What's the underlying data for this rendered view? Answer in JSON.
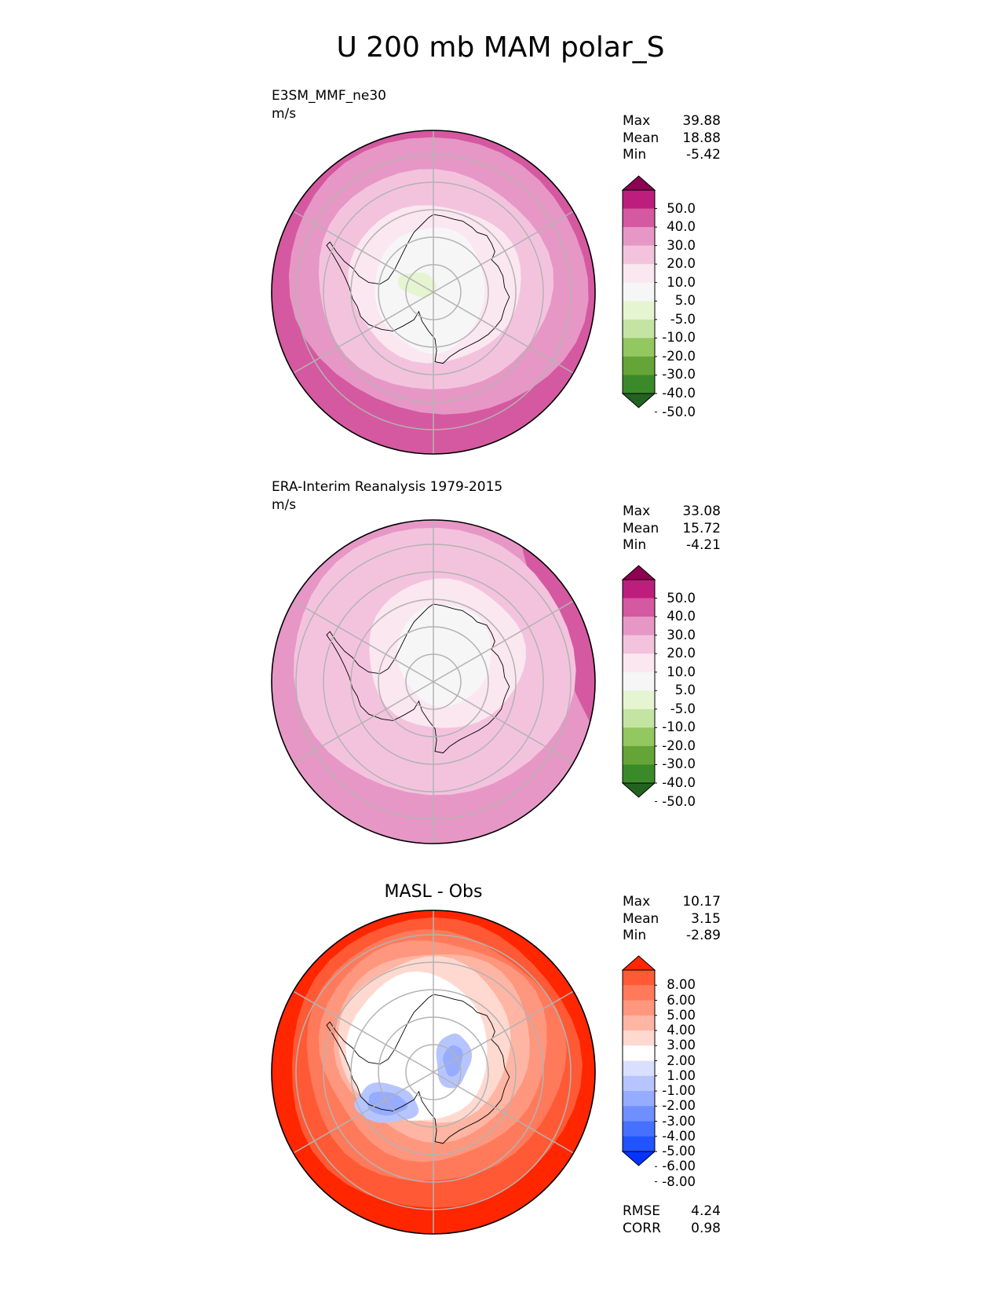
{
  "title": "U 200 mb MAM polar_S",
  "colors": {
    "pinkgreen": [
      "#246222",
      "#3b8a2a",
      "#65a436",
      "#93c760",
      "#c4e4a3",
      "#e6f5d1",
      "#f6f6f6",
      "#fbe7f0",
      "#f3c3de",
      "#e797c5",
      "#d559a0",
      "#bd1e7d",
      "#8e0152"
    ],
    "diff": [
      "#0433ff",
      "#2153ff",
      "#4670ff",
      "#6f8fff",
      "#96acff",
      "#b6c5ff",
      "#d9e0ff",
      "#ffffff",
      "#ffd9d0",
      "#ffb5a3",
      "#ff967e",
      "#ff7a5b",
      "#ff5a35",
      "#ff2600"
    ],
    "grid": "#b3b3b3",
    "coast": "#000000"
  },
  "chart_data": [
    {
      "type": "heatmap",
      "projection": "south-polar-stereographic",
      "name": "test",
      "label": "E3SM_MMF_ne30",
      "units": "m/s",
      "stats": [
        {
          "name": "Max",
          "value": "39.88"
        },
        {
          "name": "Mean",
          "value": "18.88"
        },
        {
          "name": "Min",
          "value": "-5.42"
        }
      ],
      "colorbar": {
        "levels": [
          "50.0",
          "40.0",
          "30.0",
          "20.0",
          "10.0",
          "5.0",
          "-5.0",
          "-10.0",
          "-20.0",
          "-30.0",
          "-40.0",
          "-50.0"
        ],
        "extend": "both"
      }
    },
    {
      "type": "heatmap",
      "projection": "south-polar-stereographic",
      "name": "reference",
      "label": "ERA-Interim Reanalysis 1979-2015",
      "units": "m/s",
      "stats": [
        {
          "name": "Max",
          "value": "33.08"
        },
        {
          "name": "Mean",
          "value": "15.72"
        },
        {
          "name": "Min",
          "value": "-4.21"
        }
      ],
      "colorbar": {
        "levels": [
          "50.0",
          "40.0",
          "30.0",
          "20.0",
          "10.0",
          "5.0",
          "-5.0",
          "-10.0",
          "-20.0",
          "-30.0",
          "-40.0",
          "-50.0"
        ],
        "extend": "both"
      }
    },
    {
      "type": "heatmap",
      "projection": "south-polar-stereographic",
      "name": "difference",
      "title": "MASL - Obs",
      "stats": [
        {
          "name": "Max",
          "value": "10.17"
        },
        {
          "name": "Mean",
          "value": "3.15"
        },
        {
          "name": "Min",
          "value": "-2.89"
        }
      ],
      "metrics": [
        {
          "name": "RMSE",
          "value": "4.24"
        },
        {
          "name": "CORR",
          "value": "0.98"
        }
      ],
      "colorbar": {
        "levels": [
          "8.00",
          "6.00",
          "5.00",
          "4.00",
          "3.00",
          "2.00",
          "1.00",
          "-1.00",
          "-2.00",
          "-3.00",
          "-4.00",
          "-5.00",
          "-6.00",
          "-8.00"
        ],
        "extend": "both"
      }
    }
  ]
}
